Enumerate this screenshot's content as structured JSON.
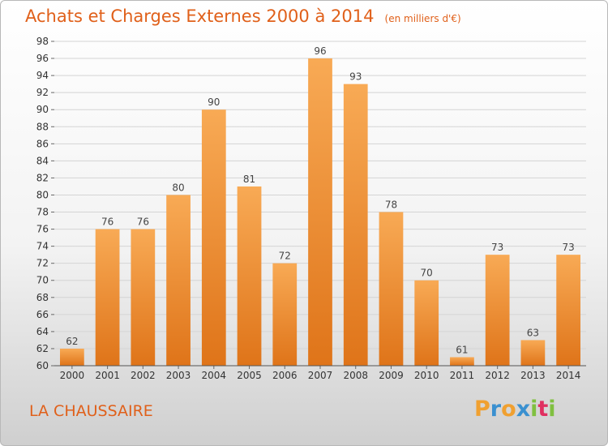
{
  "title": "Achats et Charges Externes 2000 à 2014",
  "unit_note": "(en milliers d'€)",
  "place_name": "LA CHAUSSAIRE",
  "logo": {
    "letters": [
      "P",
      "r",
      "o",
      "x",
      "i",
      "t",
      "i"
    ],
    "colors": [
      "#f0a030",
      "#3a90d0",
      "#f0a030",
      "#3a90d0",
      "#80c040",
      "#e03060",
      "#80c040"
    ]
  },
  "colors": {
    "accent": "#e0601a",
    "bar_light": "#f7a550",
    "bar_dark": "#e07820",
    "grid": "#d4d4d4"
  },
  "chart_data": {
    "type": "bar",
    "title": "Achats et Charges Externes 2000 à 2014",
    "xlabel": "",
    "ylabel": "",
    "categories": [
      "2000",
      "2001",
      "2002",
      "2003",
      "2004",
      "2005",
      "2006",
      "2007",
      "2008",
      "2009",
      "2010",
      "2011",
      "2012",
      "2013",
      "2014"
    ],
    "values": [
      62,
      76,
      76,
      80,
      90,
      81,
      72,
      96,
      93,
      78,
      70,
      61,
      73,
      63,
      73
    ],
    "ylim": [
      60,
      98
    ],
    "yticks": [
      60,
      62,
      64,
      66,
      68,
      70,
      72,
      74,
      76,
      78,
      80,
      82,
      84,
      86,
      88,
      90,
      92,
      94,
      96,
      98
    ],
    "grid": true,
    "legend": "none"
  }
}
